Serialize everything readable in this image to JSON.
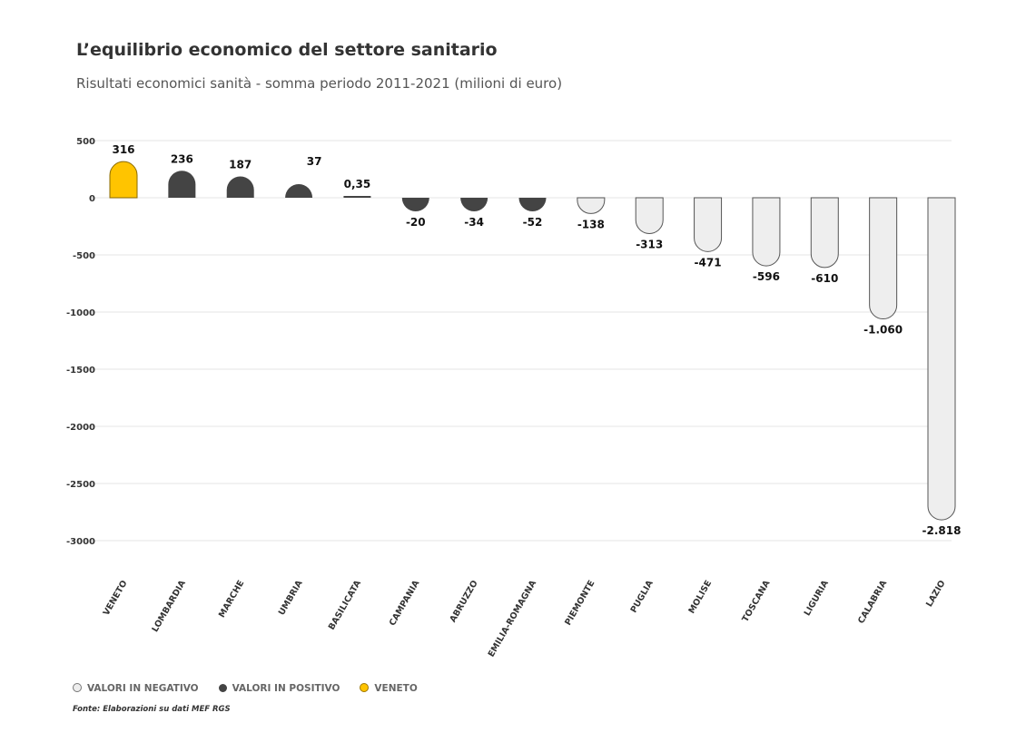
{
  "title": "L’equilibrio economico del settore sanitario",
  "subtitle": "Risultati economici sanità - somma periodo 2011-2021 (milioni di euro)",
  "legend": [
    {
      "label": "VALORI IN NEGATIVO",
      "color": "#eeeeee"
    },
    {
      "label": "VALORI IN POSITIVO",
      "color": "#444444"
    },
    {
      "label": "VENETO",
      "color": "#ffc400"
    }
  ],
  "source": "Fonte: Elaborazioni su dati MEF RGS",
  "chart_data": {
    "type": "bar",
    "title": "L’equilibrio economico del settore sanitario",
    "subtitle": "Risultati economici sanità - somma periodo 2011-2021 (milioni di euro)",
    "categories": [
      "VENETO",
      "LOMBARDIA",
      "MARCHE",
      "UMBRIA",
      "BASILICATA",
      "CAMPANIA",
      "ABRUZZO",
      "EMILIA-ROMAGNA",
      "PIEMONTE",
      "PUGLIA",
      "MOLISE",
      "TOSCANA",
      "LIGURIA",
      "CALABRIA",
      "LAZIO"
    ],
    "values": [
      316,
      236,
      187,
      37,
      0.35,
      -20,
      -34,
      -52,
      -138,
      -313,
      -471,
      -596,
      -610,
      -1060,
      -2818
    ],
    "data_labels": [
      "316",
      "236",
      "187",
      "37",
      "0,35",
      "-20",
      "-34",
      "-52",
      "-138",
      "-313",
      "-471",
      "-596",
      "-610",
      "-1.060",
      "-2.818"
    ],
    "groups": [
      "veneto",
      "positive",
      "positive",
      "positive",
      "positive",
      "positive",
      "positive",
      "positive",
      "negative",
      "negative",
      "negative",
      "negative",
      "negative",
      "negative",
      "negative"
    ],
    "colors": {
      "veneto": "#ffc400",
      "positive": "#444444",
      "negative": "#eeeeee"
    },
    "yticks": [
      500,
      0,
      -500,
      -1000,
      -1500,
      -2000,
      -2500,
      -3000
    ],
    "ylim": [
      -3000,
      500
    ],
    "grid": true,
    "legend_position": "bottom-left"
  }
}
